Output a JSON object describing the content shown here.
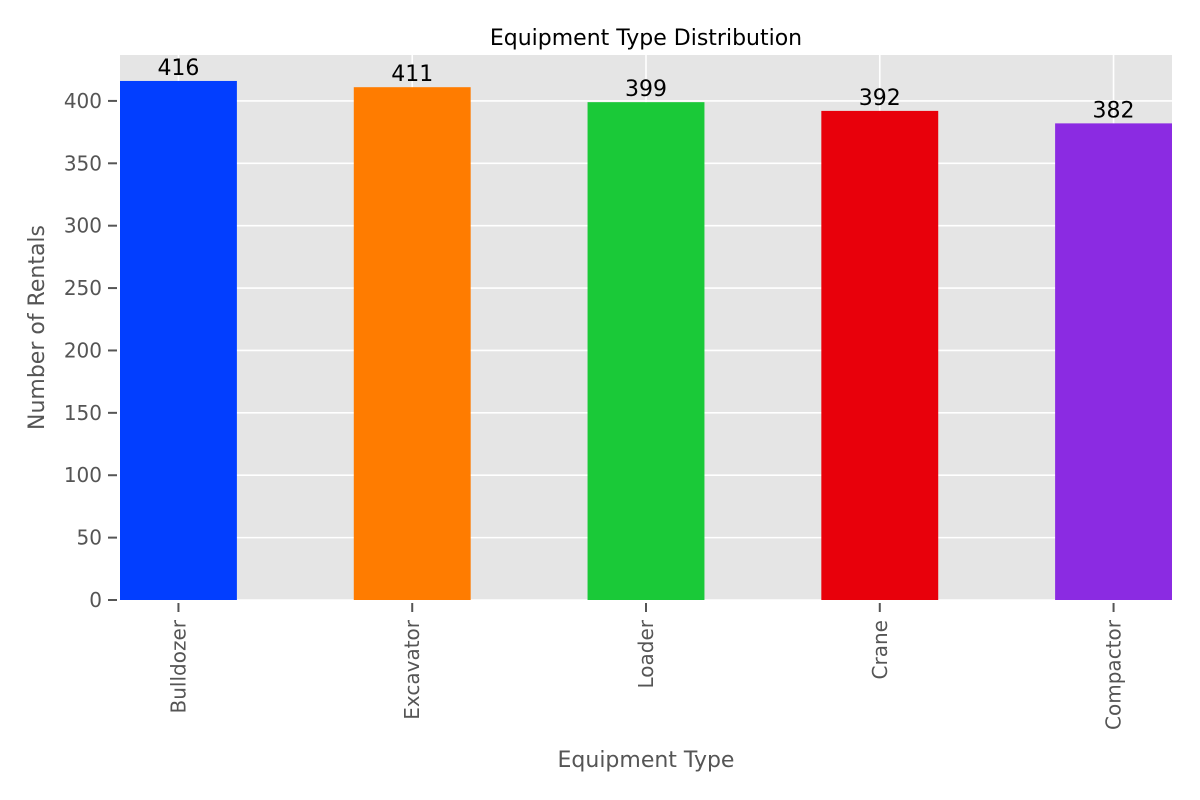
{
  "chart_data": {
    "type": "bar",
    "title": "Equipment Type Distribution",
    "xlabel": "Equipment Type",
    "ylabel": "Number of Rentals",
    "categories": [
      "Bulldozer",
      "Excavator",
      "Loader",
      "Crane",
      "Compactor"
    ],
    "values": [
      416,
      411,
      399,
      392,
      382
    ],
    "bar_colors": [
      "#023eff",
      "#ff7c00",
      "#1ac938",
      "#e8000b",
      "#8b2be2"
    ],
    "ylim": [
      0,
      436.8
    ],
    "yticks": [
      0,
      50,
      100,
      150,
      200,
      250,
      300,
      350,
      400
    ],
    "grid": true,
    "background_color": "#e5e5e5",
    "grid_color": "#ffffff",
    "data_labels": true
  }
}
